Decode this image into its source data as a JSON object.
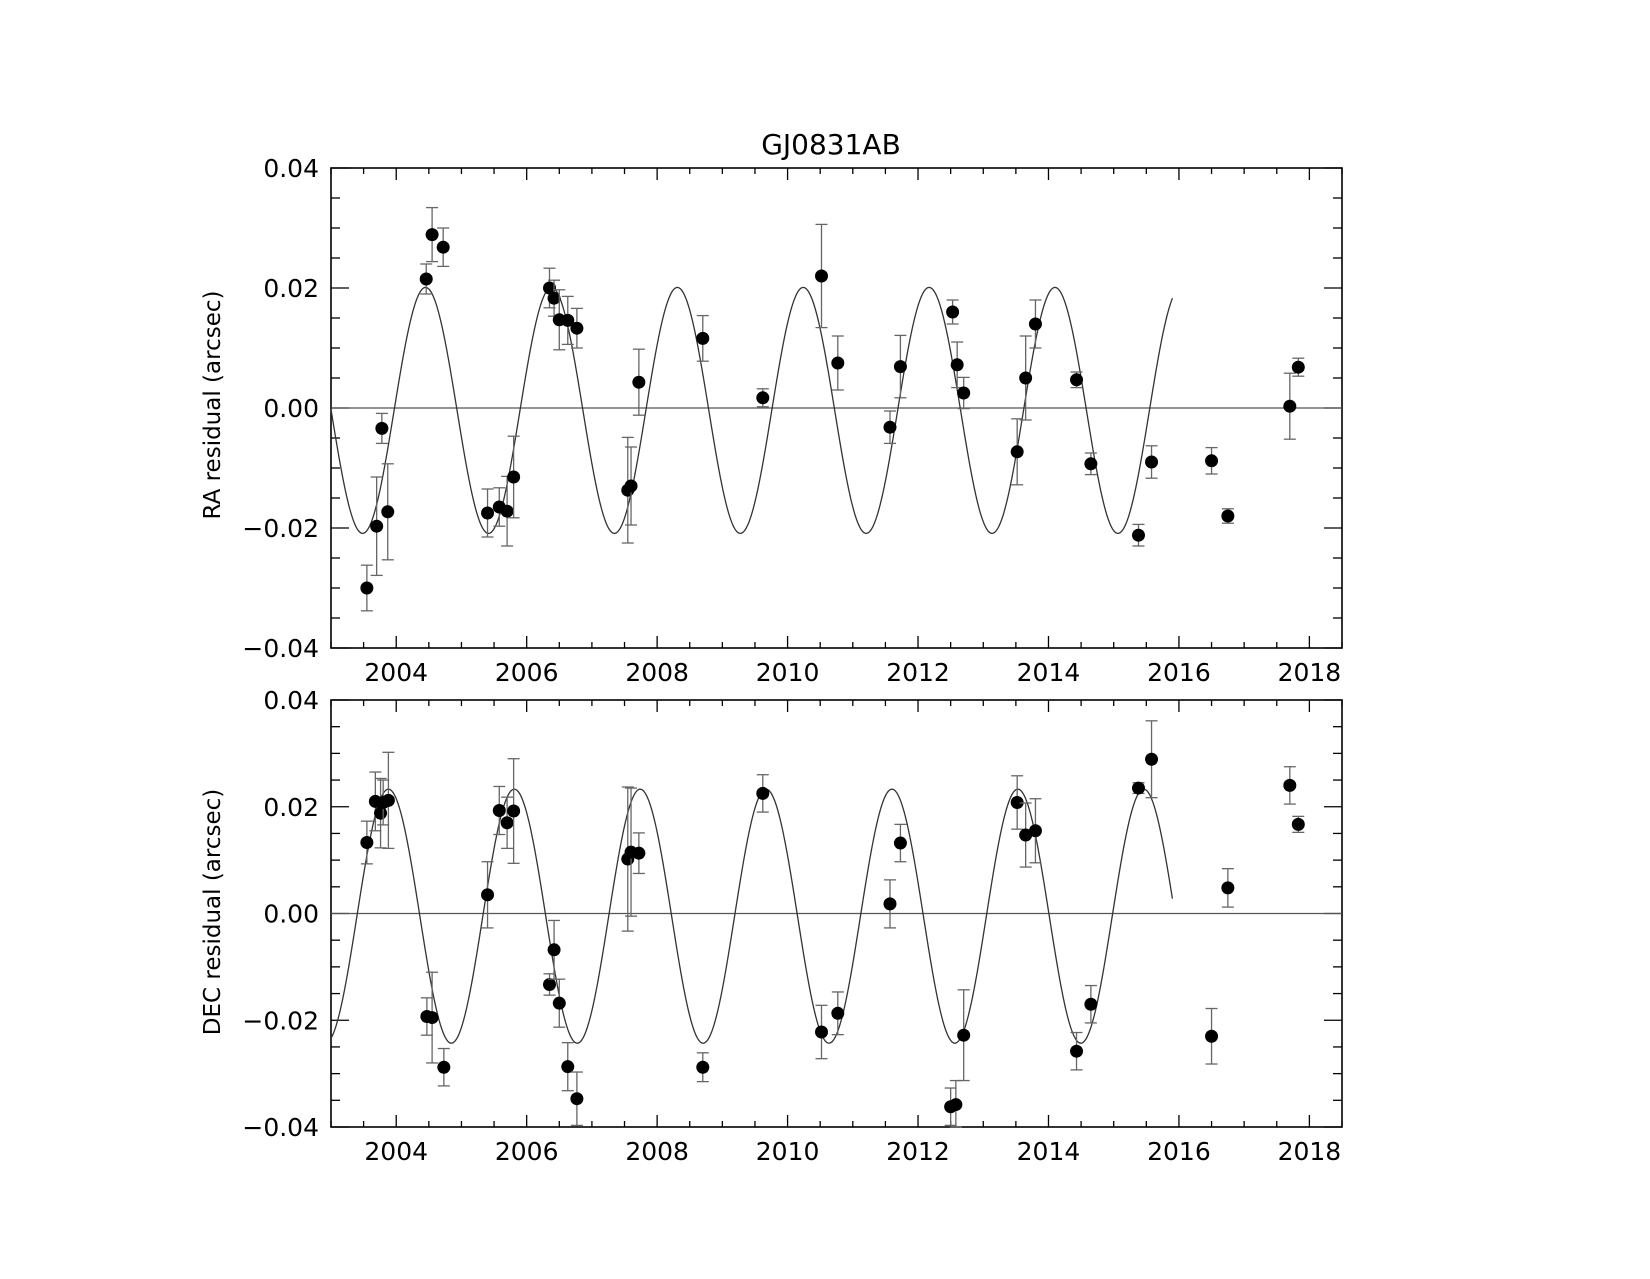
{
  "chart_data": [
    {
      "type": "scatter",
      "title": "GJ0831AB",
      "ylabel": "RA residual (arcsec)",
      "xlim": [
        2003.0,
        2018.5
      ],
      "ylim": [
        -0.04,
        0.04
      ],
      "x_ticks": [
        2004,
        2006,
        2008,
        2010,
        2012,
        2014,
        2016,
        2018
      ],
      "y_ticks": [
        -0.04,
        -0.02,
        0.0,
        0.02,
        0.04
      ],
      "y_tick_labels": [
        "−0.04",
        "−0.02",
        "0.00",
        "0.02",
        "0.04"
      ],
      "model_curve": {
        "amplitude": 0.0205,
        "offset": -0.0004,
        "period_years": 1.93,
        "peak_epoch": 2004.45,
        "x_range": [
          2003.0,
          2015.9
        ]
      },
      "zero_line": 0.0,
      "points": [
        {
          "x": 2003.55,
          "y": -0.03,
          "err": 0.0038
        },
        {
          "x": 2003.7,
          "y": -0.0197,
          "err": 0.0082
        },
        {
          "x": 2003.78,
          "y": -0.0034,
          "err": 0.0025
        },
        {
          "x": 2003.87,
          "y": -0.0173,
          "err": 0.008
        },
        {
          "x": 2004.46,
          "y": 0.0215,
          "err": 0.0025
        },
        {
          "x": 2004.55,
          "y": 0.0289,
          "err": 0.0045
        },
        {
          "x": 2004.72,
          "y": 0.0268,
          "err": 0.0032
        },
        {
          "x": 2005.4,
          "y": -0.0175,
          "err": 0.004
        },
        {
          "x": 2005.58,
          "y": -0.0165,
          "err": 0.0032
        },
        {
          "x": 2005.7,
          "y": -0.0172,
          "err": 0.0058
        },
        {
          "x": 2005.8,
          "y": -0.0115,
          "err": 0.0068
        },
        {
          "x": 2006.35,
          "y": 0.02,
          "err": 0.0033
        },
        {
          "x": 2006.42,
          "y": 0.0183,
          "err": 0.003
        },
        {
          "x": 2006.5,
          "y": 0.0147,
          "err": 0.005
        },
        {
          "x": 2006.63,
          "y": 0.0146,
          "err": 0.004
        },
        {
          "x": 2006.77,
          "y": 0.0133,
          "err": 0.0033
        },
        {
          "x": 2007.55,
          "y": -0.0137,
          "err": 0.0088
        },
        {
          "x": 2007.6,
          "y": -0.013,
          "err": 0.0065
        },
        {
          "x": 2007.72,
          "y": 0.0043,
          "err": 0.0055
        },
        {
          "x": 2008.7,
          "y": 0.0116,
          "err": 0.0038
        },
        {
          "x": 2009.62,
          "y": 0.0017,
          "err": 0.0015
        },
        {
          "x": 2010.52,
          "y": 0.022,
          "err": 0.0086
        },
        {
          "x": 2010.77,
          "y": 0.0075,
          "err": 0.0045
        },
        {
          "x": 2011.57,
          "y": -0.0032,
          "err": 0.0027
        },
        {
          "x": 2011.73,
          "y": 0.0069,
          "err": 0.0052
        },
        {
          "x": 2012.53,
          "y": 0.016,
          "err": 0.002
        },
        {
          "x": 2012.6,
          "y": 0.0072,
          "err": 0.0038
        },
        {
          "x": 2012.7,
          "y": 0.0025,
          "err": 0.0026
        },
        {
          "x": 2013.52,
          "y": -0.0073,
          "err": 0.0055
        },
        {
          "x": 2013.65,
          "y": 0.005,
          "err": 0.007
        },
        {
          "x": 2013.8,
          "y": 0.014,
          "err": 0.004
        },
        {
          "x": 2014.43,
          "y": 0.0047,
          "err": 0.0013
        },
        {
          "x": 2014.65,
          "y": -0.0093,
          "err": 0.0018
        },
        {
          "x": 2015.38,
          "y": -0.0212,
          "err": 0.0018
        },
        {
          "x": 2015.58,
          "y": -0.009,
          "err": 0.0027
        },
        {
          "x": 2016.5,
          "y": -0.0088,
          "err": 0.0022
        },
        {
          "x": 2016.75,
          "y": -0.018,
          "err": 0.0012
        },
        {
          "x": 2017.7,
          "y": 0.0003,
          "err": 0.0055
        },
        {
          "x": 2017.83,
          "y": 0.0068,
          "err": 0.0015
        }
      ]
    },
    {
      "type": "scatter",
      "title": "",
      "ylabel": "DEC residual (arcsec)",
      "xlim": [
        2003.0,
        2018.5
      ],
      "ylim": [
        -0.04,
        0.04
      ],
      "x_ticks": [
        2004,
        2006,
        2008,
        2010,
        2012,
        2014,
        2016,
        2018
      ],
      "y_ticks": [
        -0.04,
        -0.02,
        0.0,
        0.02,
        0.04
      ],
      "y_tick_labels": [
        "−0.04",
        "−0.02",
        "0.00",
        "0.02",
        "0.04"
      ],
      "model_curve": {
        "amplitude": 0.0238,
        "offset": -0.0005,
        "period_years": 1.93,
        "peak_epoch": 2003.88,
        "x_range": [
          2003.0,
          2015.9
        ]
      },
      "zero_line": 0.0,
      "points": [
        {
          "x": 2003.55,
          "y": 0.0133,
          "err": 0.004
        },
        {
          "x": 2003.68,
          "y": 0.021,
          "err": 0.0055
        },
        {
          "x": 2003.76,
          "y": 0.0188,
          "err": 0.0065
        },
        {
          "x": 2003.8,
          "y": 0.0208,
          "err": 0.0042
        },
        {
          "x": 2003.88,
          "y": 0.0212,
          "err": 0.009
        },
        {
          "x": 2004.47,
          "y": -0.0193,
          "err": 0.0035
        },
        {
          "x": 2004.55,
          "y": -0.0195,
          "err": 0.0085
        },
        {
          "x": 2004.73,
          "y": -0.0288,
          "err": 0.0035
        },
        {
          "x": 2005.4,
          "y": 0.0035,
          "err": 0.0062
        },
        {
          "x": 2005.58,
          "y": 0.0193,
          "err": 0.0045
        },
        {
          "x": 2005.7,
          "y": 0.017,
          "err": 0.0048
        },
        {
          "x": 2005.8,
          "y": 0.0192,
          "err": 0.0098
        },
        {
          "x": 2006.35,
          "y": -0.0133,
          "err": 0.002
        },
        {
          "x": 2006.42,
          "y": -0.0068,
          "err": 0.0055
        },
        {
          "x": 2006.5,
          "y": -0.0168,
          "err": 0.0045
        },
        {
          "x": 2006.63,
          "y": -0.0287,
          "err": 0.0045
        },
        {
          "x": 2006.77,
          "y": -0.0347,
          "err": 0.005
        },
        {
          "x": 2007.55,
          "y": 0.0102,
          "err": 0.0135
        },
        {
          "x": 2007.6,
          "y": 0.0115,
          "err": 0.012
        },
        {
          "x": 2007.72,
          "y": 0.0113,
          "err": 0.0038
        },
        {
          "x": 2008.7,
          "y": -0.0288,
          "err": 0.0027
        },
        {
          "x": 2009.62,
          "y": 0.0225,
          "err": 0.0035
        },
        {
          "x": 2010.52,
          "y": -0.0222,
          "err": 0.005
        },
        {
          "x": 2010.77,
          "y": -0.0187,
          "err": 0.004
        },
        {
          "x": 2011.57,
          "y": 0.0018,
          "err": 0.0045
        },
        {
          "x": 2011.73,
          "y": 0.0132,
          "err": 0.0035
        },
        {
          "x": 2012.5,
          "y": -0.0362,
          "err": 0.0035
        },
        {
          "x": 2012.58,
          "y": -0.0358,
          "err": 0.0045
        },
        {
          "x": 2012.7,
          "y": -0.0228,
          "err": 0.0085
        },
        {
          "x": 2013.52,
          "y": 0.0208,
          "err": 0.005
        },
        {
          "x": 2013.65,
          "y": 0.0147,
          "err": 0.006
        },
        {
          "x": 2013.8,
          "y": 0.0155,
          "err": 0.006
        },
        {
          "x": 2014.43,
          "y": -0.0258,
          "err": 0.0035
        },
        {
          "x": 2014.65,
          "y": -0.017,
          "err": 0.0035
        },
        {
          "x": 2015.38,
          "y": 0.0235,
          "err": 0.001
        },
        {
          "x": 2015.58,
          "y": 0.0289,
          "err": 0.0072
        },
        {
          "x": 2016.5,
          "y": -0.023,
          "err": 0.0052
        },
        {
          "x": 2016.75,
          "y": 0.0048,
          "err": 0.0036
        },
        {
          "x": 2017.7,
          "y": 0.024,
          "err": 0.0035
        },
        {
          "x": 2017.83,
          "y": 0.0167,
          "err": 0.0015
        }
      ]
    }
  ]
}
